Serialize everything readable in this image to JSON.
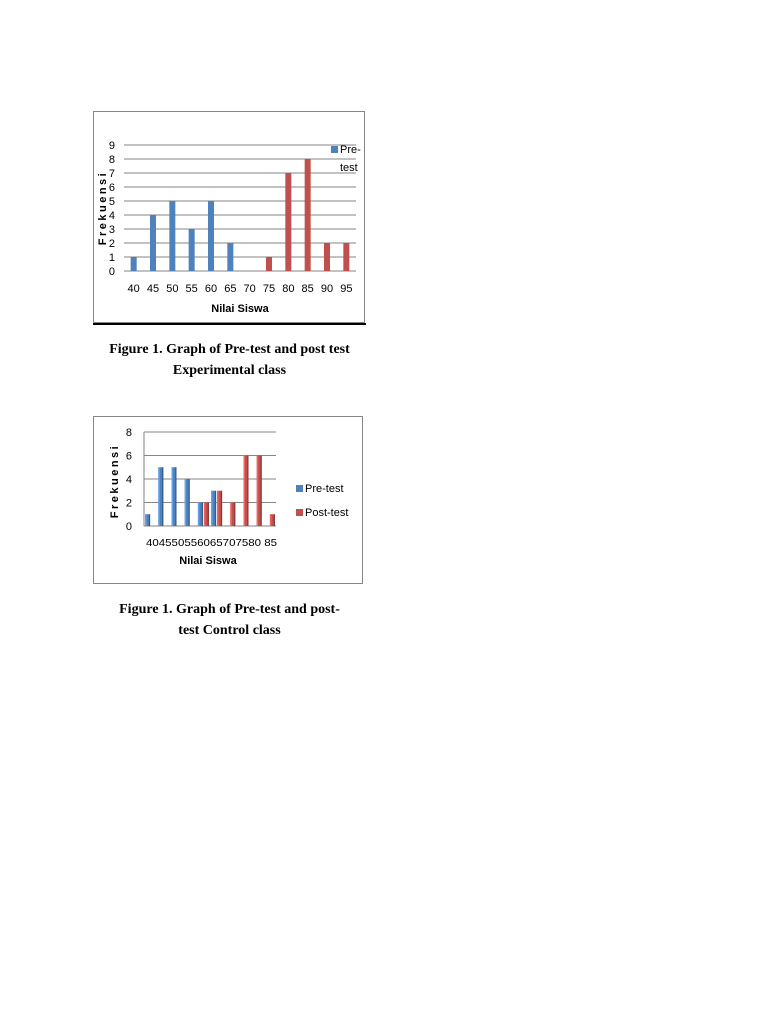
{
  "chart_data": [
    {
      "type": "bar",
      "title": "",
      "xlabel": "Nilai Siswa",
      "ylabel": "Frekuensi",
      "categories": [
        "40",
        "45",
        "50",
        "55",
        "60",
        "65",
        "70",
        "75",
        "80",
        "85",
        "90",
        "95"
      ],
      "series": [
        {
          "name": "Pre-test",
          "color": "#4f81bd",
          "values": [
            1,
            4,
            5,
            3,
            5,
            2,
            0,
            0,
            0,
            0,
            0,
            0
          ]
        },
        {
          "name": "",
          "color": "#c0504d",
          "values": [
            0,
            0,
            0,
            0,
            0,
            0,
            0,
            1,
            7,
            8,
            2,
            2
          ]
        }
      ],
      "ylim": [
        0,
        9
      ],
      "yticks": [
        "0",
        "1",
        "2",
        "3",
        "4",
        "5",
        "6",
        "7",
        "8",
        "9"
      ],
      "grid": true,
      "legend": {
        "position": "top-right",
        "lines": [
          "Pre-",
          "test"
        ]
      }
    },
    {
      "type": "bar",
      "title": "",
      "xlabel": "Nilai Siswa",
      "ylabel": "Frekuensi",
      "xtick_text": "404550556065707580 85",
      "categories": [
        "40",
        "45",
        "50",
        "55",
        "60",
        "65",
        "70",
        "75",
        "80",
        "85"
      ],
      "series": [
        {
          "name": "Pre-test",
          "color": "#4f81bd",
          "values": [
            1,
            5,
            5,
            4,
            2,
            3,
            0,
            0,
            0,
            0
          ]
        },
        {
          "name": "Post-test",
          "color": "#c0504d",
          "values": [
            0,
            0,
            0,
            0,
            2,
            3,
            2,
            6,
            6,
            1
          ]
        }
      ],
      "ylim": [
        0,
        8
      ],
      "yticks": [
        "0",
        "2",
        "4",
        "6",
        "8"
      ],
      "grid": true,
      "legend": {
        "position": "right"
      }
    }
  ],
  "captions": {
    "fig1_line1": "Figure 1. Graph of Pre-test and post test",
    "fig1_line2": "Experimental class",
    "fig2_line1": "Figure 1. Graph of Pre-test and post-",
    "fig2_line2": "test Control class"
  }
}
